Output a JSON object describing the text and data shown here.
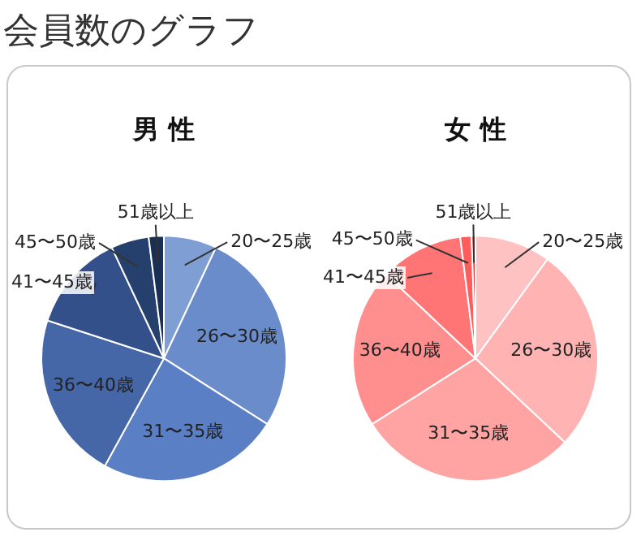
{
  "chart_data": [
    {
      "type": "other",
      "title": "会員数のグラフ"
    },
    {
      "type": "pie",
      "title": "男 性",
      "categories": [
        "20〜25歳",
        "26〜30歳",
        "31〜35歳",
        "36〜40歳",
        "41〜45歳",
        "45〜50歳",
        "51歳以上"
      ],
      "values": [
        7,
        27,
        24,
        22,
        13,
        5,
        2
      ],
      "colors": [
        "#7f9fd4",
        "#6a8cca",
        "#5a7fc4",
        "#4567a8",
        "#34508a",
        "#26406e",
        "#1b2f55"
      ],
      "legend": false
    },
    {
      "type": "pie",
      "title": "女 性",
      "categories": [
        "20〜25歳",
        "26〜30歳",
        "31〜35歳",
        "36〜40歳",
        "41〜45歳",
        "45〜50歳",
        "51歳以上"
      ],
      "values": [
        10,
        27,
        29,
        21,
        11,
        1.5,
        0.5
      ],
      "colors": [
        "#ffc2c2",
        "#ffb3b3",
        "#ffa3a3",
        "#ff8f8f",
        "#ff7575",
        "#ff5c5c",
        "#e83838"
      ],
      "legend": false
    }
  ]
}
